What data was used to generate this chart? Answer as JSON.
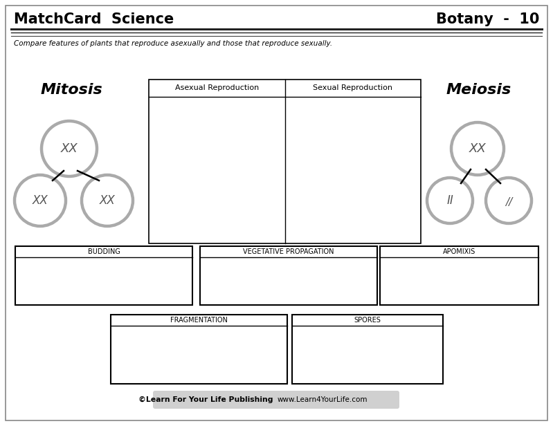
{
  "title_left": "MatchCard  Science",
  "title_right": "Botany  -  10",
  "subtitle": "Compare features of plants that reproduce asexually and those that reproduce sexually.",
  "mitosis_label": "Mitosis",
  "meiosis_label": "Meiosis",
  "col1_header": "Asexual Reproduction",
  "col2_header": "Sexual Reproduction",
  "box_labels_row1": [
    "BUDDING",
    "VEGETATIVE PROPAGATION",
    "APOMIXIS"
  ],
  "box_labels_row2": [
    "FRAGMENTATION",
    "SPORES"
  ],
  "footer_bold": "©Learn For Your Life Publishing",
  "footer_normal": "www.Learn4YourLife.com",
  "bg_color": "#ffffff",
  "gray_color": "#aaaaaa",
  "footer_bg": "#d0d0d0"
}
